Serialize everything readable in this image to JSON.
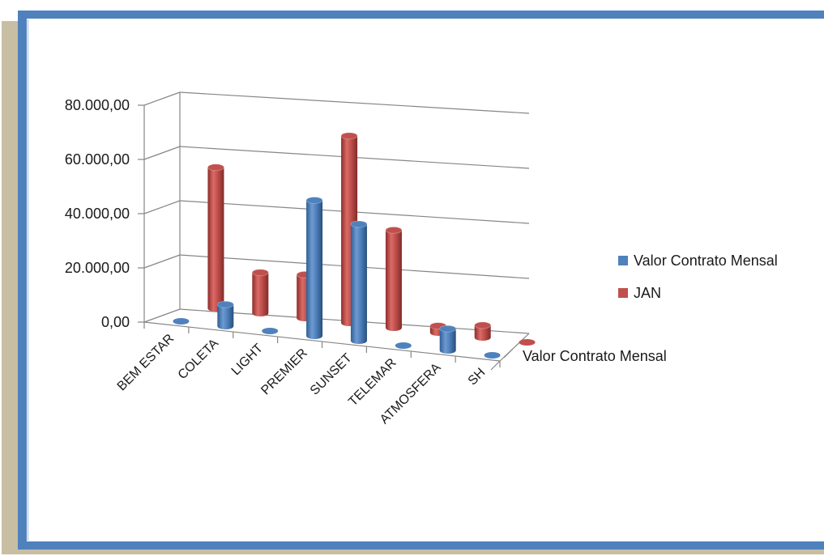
{
  "chart_data": {
    "type": "bar",
    "style": "3d-cylinder",
    "categories": [
      "BEM ESTAR",
      "COLETA",
      "LIGHT",
      "PREMIER",
      "SUNSET",
      "TELEMAR",
      "ATMOSFERA",
      "SH"
    ],
    "series": [
      {
        "name": "Valor Contrato Mensal",
        "values": [
          0,
          8000,
          0,
          50000,
          43000,
          0,
          8000,
          0
        ],
        "color": "#4f81bd"
      },
      {
        "name": "JAN",
        "values": [
          52000,
          15000,
          16000,
          69000,
          36000,
          2500,
          4500,
          300
        ],
        "color": "#c0504d"
      }
    ],
    "y_ticks": [
      "0,00",
      "20.000,00",
      "40.000,00",
      "60.000,00",
      "80.000,00"
    ],
    "ylim": [
      0,
      80000
    ],
    "depth_label": "Valor Contrato Mensal",
    "grid": true,
    "legend_position": "right"
  }
}
